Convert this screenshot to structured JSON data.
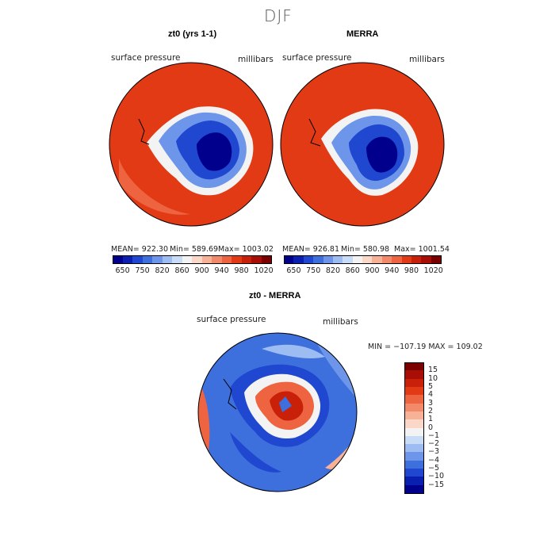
{
  "figure": {
    "title": "DJF"
  },
  "panels": [
    {
      "title": "zt0 (yrs 1-1)",
      "variable": "surface pressure",
      "units": "millibars",
      "stats": {
        "mean_label": "MEAN= 922.30",
        "min_label": "Min= 589.69",
        "max_label": "Max= 1003.02"
      },
      "colorbar": {
        "colors": [
          "#00008c",
          "#0a1fb0",
          "#1f47cf",
          "#3d6fdd",
          "#6d96ea",
          "#9cbcf2",
          "#c9dcf7",
          "#f3f3f3",
          "#fad7c6",
          "#f6b197",
          "#f28a6a",
          "#ee6440",
          "#e23a14",
          "#c9200a",
          "#a80d06",
          "#7a0000"
        ],
        "tick_labels": [
          "650",
          "750",
          "820",
          "860",
          "900",
          "940",
          "980",
          "1020"
        ]
      }
    },
    {
      "title": "MERRA",
      "variable": "surface pressure",
      "units": "millibars",
      "stats": {
        "mean_label": "MEAN= 926.81",
        "min_label": "Min= 580.98",
        "max_label": "Max= 1001.54"
      },
      "colorbar": {
        "colors": [
          "#00008c",
          "#0a1fb0",
          "#1f47cf",
          "#3d6fdd",
          "#6d96ea",
          "#9cbcf2",
          "#c9dcf7",
          "#f3f3f3",
          "#fad7c6",
          "#f6b197",
          "#f28a6a",
          "#ee6440",
          "#e23a14",
          "#c9200a",
          "#a80d06",
          "#7a0000"
        ],
        "tick_labels": [
          "650",
          "750",
          "820",
          "860",
          "900",
          "940",
          "980",
          "1020"
        ]
      }
    },
    {
      "title": "zt0 - MERRA",
      "variable": "surface pressure",
      "units": "millibars",
      "stats": {
        "range_label": "MIN = −107.19  MAX = 109.02"
      },
      "colorbar": {
        "colors": [
          "#7a0000",
          "#a80d06",
          "#c9200a",
          "#e23a14",
          "#ee6440",
          "#f28a6a",
          "#f6b197",
          "#fad7c6",
          "#f3f3f3",
          "#c9dcf7",
          "#9cbcf2",
          "#6d96ea",
          "#3d6fdd",
          "#1f47cf",
          "#0a1fb0",
          "#00008c"
        ],
        "tick_labels": [
          "15",
          "10",
          "5",
          "4",
          "3",
          "2",
          "1",
          "0",
          "−1",
          "−2",
          "−3",
          "−4",
          "−5",
          "−10",
          "−15"
        ]
      }
    }
  ],
  "map_colors": {
    "ocean_high": "#e23a14",
    "ocean_mid": "#ee6440",
    "ice_deep": "#00008c",
    "ice_mid": "#1f47cf",
    "ice_edge": "#6d96ea",
    "coast_light": "#f3f3f3",
    "diff_bg": "#3d6fdd",
    "diff_dark": "#1f47cf",
    "diff_light": "#9cbcf2",
    "diff_red": "#ee6440"
  }
}
